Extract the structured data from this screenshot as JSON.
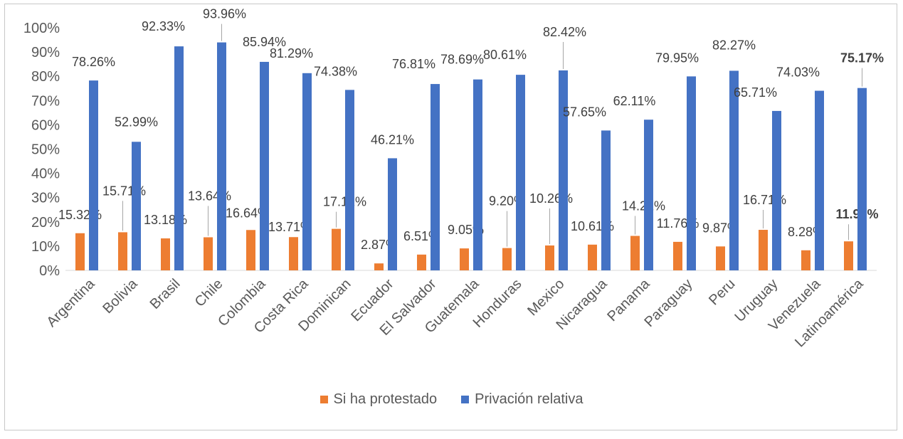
{
  "chart_data": {
    "type": "bar",
    "title": "",
    "xlabel": "",
    "ylabel": "",
    "ylim": [
      0,
      100
    ],
    "yticks": [
      "0%",
      "10%",
      "20%",
      "30%",
      "40%",
      "50%",
      "60%",
      "70%",
      "80%",
      "90%",
      "100%"
    ],
    "grid": false,
    "legend": "bottom",
    "categories": [
      "Argentina",
      "Bolivia",
      "Brasil",
      "Chile",
      "Colombia",
      "Costa Rica",
      "Dominican",
      "Ecuador",
      "El Salvador",
      "Guatemala",
      "Honduras",
      "Mexico",
      "Nicaragua",
      "Panama",
      "Paraguay",
      "Peru",
      "Uruguay",
      "Venezuela",
      "Latinoamérica"
    ],
    "series": [
      {
        "name": "Si ha protestado",
        "color": "#ED7D31",
        "values": [
          15.32,
          15.71,
          13.18,
          13.64,
          16.64,
          13.71,
          17.12,
          2.87,
          6.51,
          9.05,
          9.2,
          10.26,
          10.61,
          14.21,
          11.76,
          9.87,
          16.71,
          8.28,
          11.96
        ],
        "labels": [
          "15.32%",
          "15.71%",
          "13.18%",
          "13.64%",
          "16.64%",
          "13.71%",
          "17.12%",
          "2.87%",
          "6.51%",
          "9.05%",
          "9.20%",
          "10.26%",
          "10.61%",
          "14.21%",
          "11.76%",
          "9.87%",
          "16.71%",
          "8.28%",
          "11.96%"
        ]
      },
      {
        "name": "Privación relativa",
        "color": "#4472C4",
        "values": [
          78.26,
          52.99,
          92.33,
          93.96,
          85.94,
          81.29,
          74.38,
          46.21,
          76.81,
          78.69,
          80.61,
          82.42,
          57.65,
          62.11,
          79.95,
          82.27,
          65.71,
          74.03,
          75.17
        ],
        "labels": [
          "78.26%",
          "52.99%",
          "92.33%",
          "93.96%",
          "85.94%",
          "81.29%",
          "74.38%",
          "46.21%",
          "76.81%",
          "78.69%",
          "80.61%",
          "82.42%",
          "57.65%",
          "62.11%",
          "79.95%",
          "82.27%",
          "65.71%",
          "74.03%",
          "75.17%"
        ]
      }
    ]
  }
}
